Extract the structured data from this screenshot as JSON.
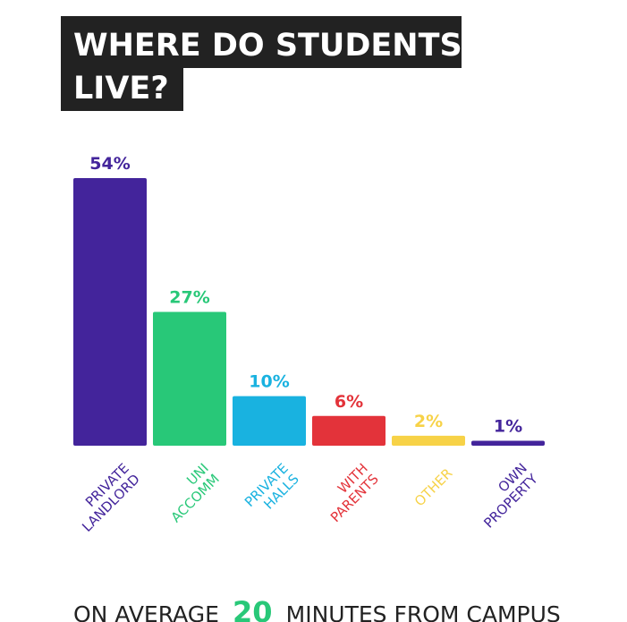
{
  "chart_data": {
    "type": "bar",
    "title": [
      "WHERE DO STUDENTS",
      "LIVE?"
    ],
    "categories": [
      [
        "PRIVATE",
        "LANDLORD"
      ],
      [
        "UNI",
        "ACCOMM"
      ],
      [
        "PRIVATE",
        "HALLS"
      ],
      [
        "WITH",
        "PARENTS"
      ],
      [
        "OTHER"
      ],
      [
        "OWN",
        "PROPERTY"
      ]
    ],
    "values": [
      54,
      27,
      10,
      6,
      2,
      1
    ],
    "value_labels": [
      "54%",
      "27%",
      "10%",
      "6%",
      "2%",
      "1%"
    ],
    "colors": [
      "#43249b",
      "#28c878",
      "#19b2e0",
      "#e3333a",
      "#f7d247",
      "#43249b"
    ],
    "footer": [
      "ON AVERAGE",
      "20",
      "MINUTES FROM CAMPUS"
    ]
  }
}
